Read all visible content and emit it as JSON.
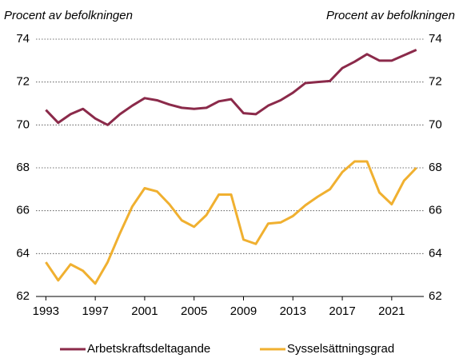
{
  "chart_data": {
    "type": "line",
    "y_label": "Procent av befolkningen",
    "y2_label": "Procent av befolkningen",
    "x": [
      1993,
      1994,
      1995,
      1996,
      1997,
      1998,
      1999,
      2000,
      2001,
      2002,
      2003,
      2004,
      2005,
      2006,
      2007,
      2008,
      2009,
      2010,
      2011,
      2012,
      2013,
      2014,
      2015,
      2016,
      2017,
      2018,
      2019,
      2020,
      2021,
      2022,
      2023
    ],
    "series": [
      {
        "name": "Arbetskraftsdeltagande",
        "color": "#8b2a4a",
        "values": [
          70.7,
          70.1,
          70.5,
          70.75,
          70.3,
          70.0,
          70.5,
          70.9,
          71.25,
          71.15,
          70.95,
          70.8,
          70.75,
          70.8,
          71.1,
          71.2,
          70.55,
          70.5,
          70.9,
          71.15,
          71.5,
          71.95,
          72.0,
          72.05,
          72.65,
          72.95,
          73.3,
          73.0,
          73.0,
          73.25,
          73.5
        ]
      },
      {
        "name": "Sysselsättningsgrad",
        "color": "#f0b030",
        "values": [
          63.6,
          62.75,
          63.5,
          63.2,
          62.6,
          63.6,
          64.95,
          66.2,
          67.05,
          66.9,
          66.3,
          65.55,
          65.25,
          65.8,
          66.75,
          66.75,
          64.65,
          64.45,
          65.4,
          65.45,
          65.75,
          66.25,
          66.65,
          67.0,
          67.8,
          68.3,
          68.3,
          66.85,
          66.3,
          67.4,
          68.0
        ]
      }
    ],
    "xlim": [
      1992.2,
      2023.6
    ],
    "xticks": [
      1993,
      1997,
      2001,
      2005,
      2009,
      2013,
      2017,
      2021
    ],
    "ylim": [
      62,
      74
    ],
    "yticks": [
      62,
      64,
      66,
      68,
      70,
      72,
      74
    ],
    "y2lim": [
      62,
      74
    ],
    "y2ticks": [
      62,
      64,
      66,
      68,
      70,
      72,
      74
    ],
    "grid": true,
    "legend": "bottom"
  }
}
